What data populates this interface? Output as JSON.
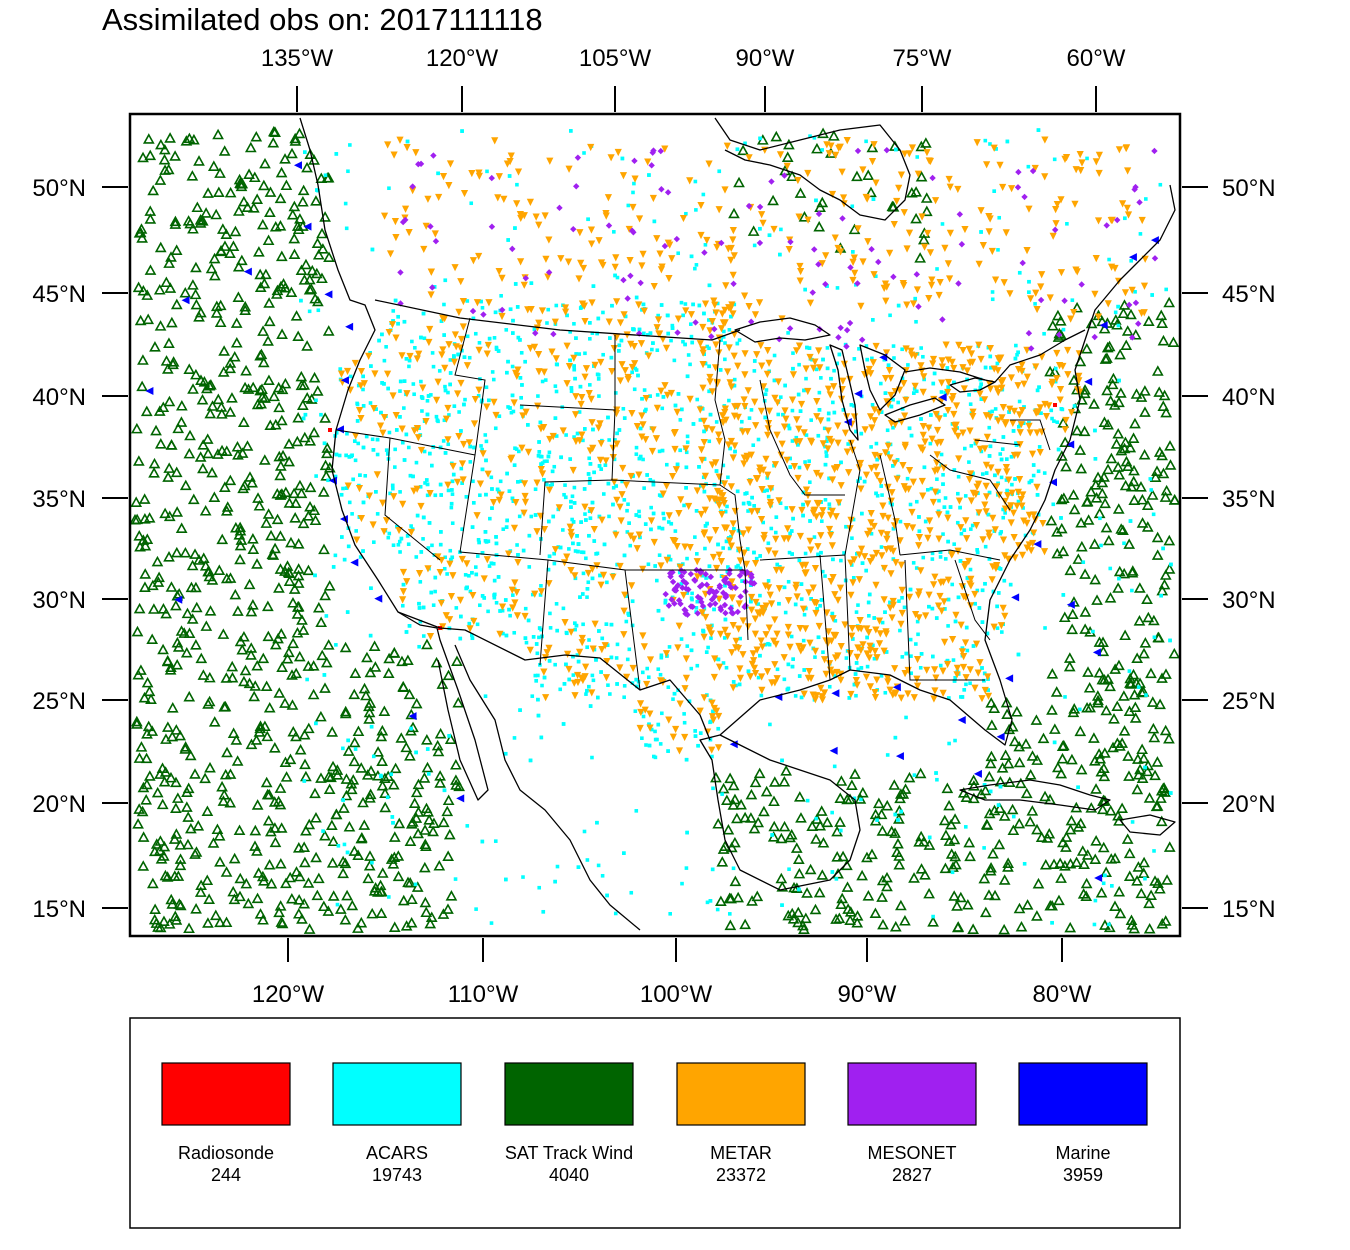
{
  "title": "Assimilated obs on: 2017111118",
  "top_lon_labels": [
    "135°W",
    "120°W",
    "105°W",
    "90°W",
    "75°W",
    "60°W"
  ],
  "bottom_lon_labels": [
    "120°W",
    "110°W",
    "100°W",
    "90°W",
    "80°W"
  ],
  "lat_labels": [
    "50°N",
    "45°N",
    "40°N",
    "35°N",
    "30°N",
    "25°N",
    "20°N",
    "15°N"
  ],
  "colors": {
    "radiosonde": "#ff0000",
    "acars": "#00ffff",
    "sat_track_wind": "#006400",
    "metar": "#ffa500",
    "mesonet": "#a020f0",
    "marine": "#0000ff"
  },
  "legend": [
    {
      "key": "radiosonde",
      "label": "Radiosonde",
      "count": "244",
      "color": "#ff0000"
    },
    {
      "key": "acars",
      "label": "ACARS",
      "count": "19743",
      "color": "#00ffff"
    },
    {
      "key": "sat_track_wind",
      "label": "SAT Track Wind",
      "count": "4040",
      "color": "#006400"
    },
    {
      "key": "metar",
      "label": "METAR",
      "count": "23372",
      "color": "#ffa500"
    },
    {
      "key": "mesonet",
      "label": "MESONET",
      "count": "2827",
      "color": "#a020f0"
    },
    {
      "key": "marine",
      "label": "Marine",
      "count": "3959",
      "color": "#0000ff"
    }
  ]
}
